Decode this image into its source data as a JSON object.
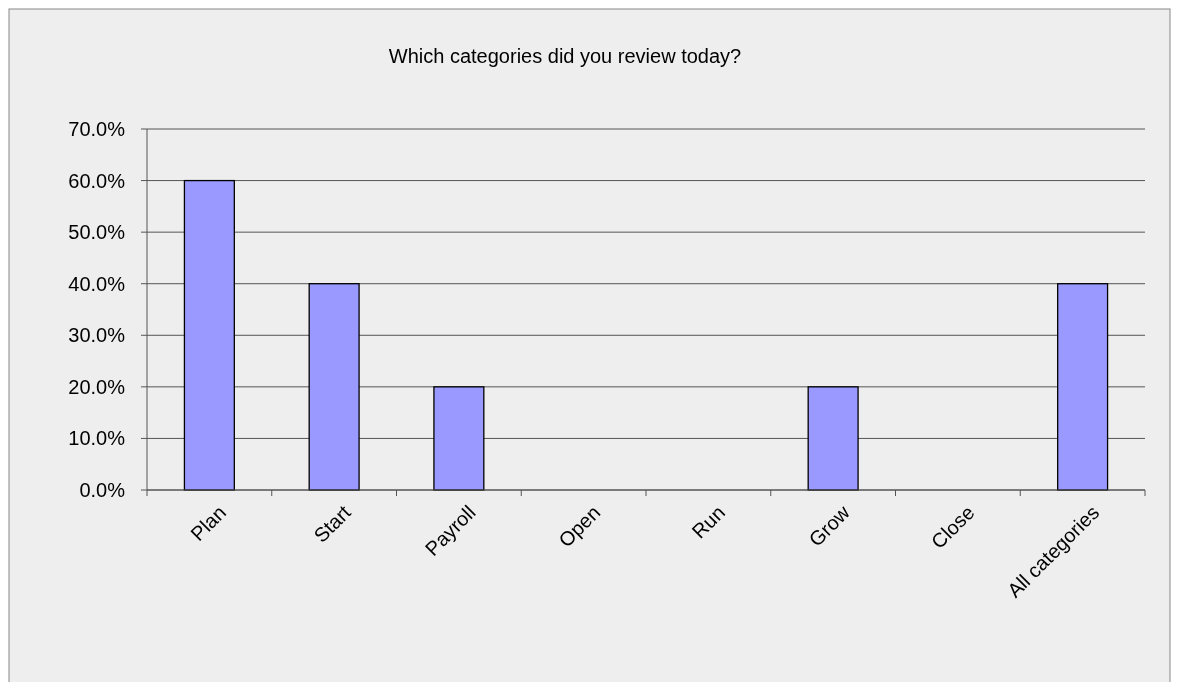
{
  "chart_data": {
    "type": "bar",
    "title": "Which categories did you review today?",
    "categories": [
      "Plan",
      "Start",
      "Payroll",
      "Open",
      "Run",
      "Grow",
      "Close",
      "All categories"
    ],
    "values": [
      60,
      40,
      20,
      0,
      0,
      20,
      0,
      40
    ],
    "color": "#9999ff",
    "ylim": [
      0,
      70
    ],
    "yticks": [
      {
        "value": 0,
        "label": "0.0%"
      },
      {
        "value": 10,
        "label": "10.0%"
      },
      {
        "value": 20,
        "label": "20.0%"
      },
      {
        "value": 30,
        "label": "30.0%"
      },
      {
        "value": 40,
        "label": "40.0%"
      },
      {
        "value": 50,
        "label": "50.0%"
      },
      {
        "value": 60,
        "label": "60.0%"
      },
      {
        "value": 70,
        "label": "70.0%"
      }
    ],
    "grid": "y"
  }
}
